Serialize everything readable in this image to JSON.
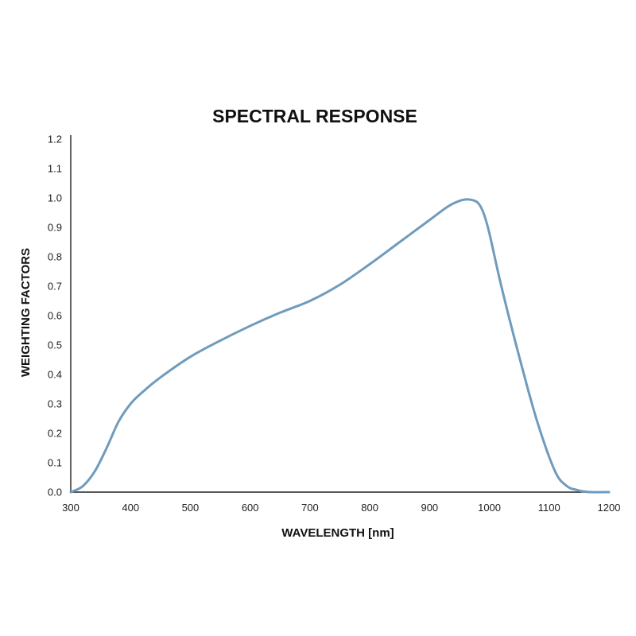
{
  "chart_data": {
    "type": "line",
    "title": "SPECTRAL RESPONSE",
    "xlabel": "WAVELENGTH [nm]",
    "ylabel": "WEIGHTING FACTORS",
    "xlim": [
      300,
      1200
    ],
    "ylim": [
      0.0,
      1.2
    ],
    "x_ticks": [
      "300",
      "400",
      "500",
      "600",
      "700",
      "800",
      "900",
      "1000",
      "1100",
      "1200"
    ],
    "y_ticks": [
      "0.0",
      "0.1",
      "0.2",
      "0.3",
      "0.4",
      "0.5",
      "0.6",
      "0.7",
      "0.8",
      "0.9",
      "1.0",
      "1.1",
      "1.2"
    ],
    "grid": false,
    "series": [
      {
        "color": "#6f9bbd",
        "x": [
          300,
          320,
          340,
          360,
          380,
          400,
          420,
          450,
          500,
          550,
          600,
          650,
          700,
          750,
          800,
          850,
          900,
          930,
          950,
          965,
          980,
          990,
          1000,
          1020,
          1050,
          1080,
          1110,
          1130,
          1145,
          1155,
          1170,
          1200
        ],
        "y": [
          0.0,
          0.02,
          0.07,
          0.15,
          0.24,
          0.3,
          0.34,
          0.39,
          0.46,
          0.515,
          0.565,
          0.61,
          0.65,
          0.705,
          0.775,
          0.85,
          0.925,
          0.97,
          0.99,
          0.995,
          0.985,
          0.95,
          0.88,
          0.7,
          0.46,
          0.24,
          0.07,
          0.02,
          0.008,
          0.003,
          0.0,
          0.0
        ]
      }
    ]
  }
}
